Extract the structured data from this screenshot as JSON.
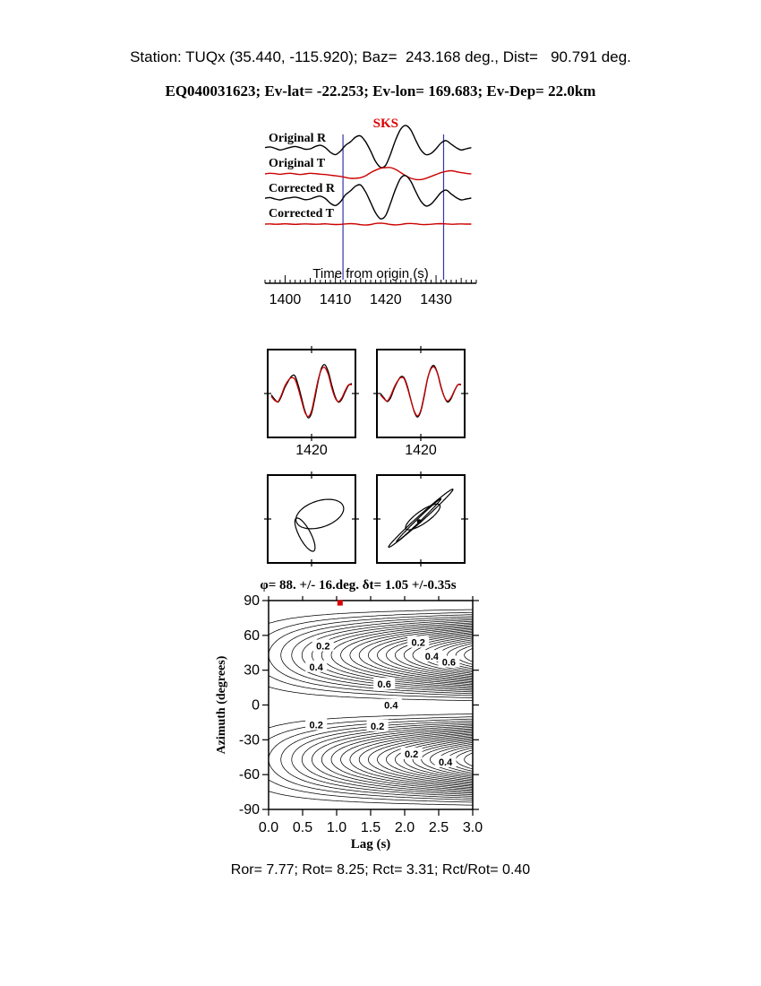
{
  "header": {
    "line1": "Station: TUQx (35.440, -115.920); Baz=  243.168 deg., Dist=   90.791 deg.",
    "line2": "EQ040031623; Ev-lat= -22.253; Ev-lon= 169.683; Ev-Dep= 22.0km"
  },
  "colors": {
    "trace_red": "#cc0000",
    "marker_blue": "#3333aa",
    "accent_red": "#dd0000"
  },
  "chart_data": [
    {
      "id": "waveform-panel",
      "type": "line",
      "phase_label": "SKS",
      "xlabel": "Time from origin (s)",
      "x_range": [
        1396,
        1438
      ],
      "x_ticks": [
        1400,
        1410,
        1420,
        1430
      ],
      "minor_tick_step": 1,
      "window_markers": [
        1411.5,
        1431.5
      ],
      "series": [
        {
          "name": "Original R",
          "color": "black",
          "values": [
            0.05,
            0.08,
            0.02,
            -0.05,
            0.0,
            0.06,
            0.1,
            0.05,
            -0.02,
            0.0,
            0.1,
            0.15,
            0.05,
            -0.15,
            -0.25,
            -0.1,
            0.15,
            0.3,
            0.5,
            0.55,
            0.3,
            -0.1,
            -0.55,
            -0.8,
            -0.7,
            -0.2,
            0.4,
            0.85,
            1.0,
            0.8,
            0.35,
            -0.05,
            -0.25,
            -0.2,
            0.0,
            0.25,
            0.35,
            0.2,
            0.05,
            -0.05,
            0.0,
            0.05
          ]
        },
        {
          "name": "Original T",
          "color": "red",
          "values": [
            0.0,
            0.05,
            0.02,
            -0.03,
            0.02,
            0.05,
            0.0,
            -0.05,
            0.0,
            0.05,
            0.02,
            -0.02,
            -0.05,
            -0.1,
            -0.15,
            -0.2,
            -0.28,
            -0.35,
            -0.35,
            -0.3,
            -0.15,
            0.1,
            0.3,
            0.45,
            0.5,
            0.5,
            0.35,
            0.1,
            -0.15,
            -0.35,
            -0.45,
            -0.45,
            -0.35,
            -0.2,
            -0.05,
            0.1,
            0.2,
            0.25,
            0.18,
            0.1,
            0.04,
            0.0
          ]
        },
        {
          "name": "Corrected R",
          "color": "black",
          "values": [
            0.03,
            0.06,
            0.0,
            -0.04,
            0.02,
            0.05,
            0.08,
            0.03,
            -0.03,
            0.0,
            0.08,
            0.12,
            0.02,
            -0.18,
            -0.28,
            -0.12,
            0.18,
            0.35,
            0.55,
            0.6,
            0.3,
            -0.15,
            -0.6,
            -0.85,
            -0.7,
            -0.15,
            0.45,
            0.9,
            1.0,
            0.75,
            0.3,
            -0.1,
            -0.3,
            -0.22,
            0.02,
            0.28,
            0.38,
            0.22,
            0.06,
            -0.04,
            0.0,
            0.04
          ]
        },
        {
          "name": "Corrected T",
          "color": "red",
          "values": [
            0.0,
            0.02,
            -0.02,
            0.0,
            0.03,
            0.0,
            -0.03,
            0.0,
            0.02,
            0.0,
            -0.02,
            0.0,
            0.03,
            -0.02,
            -0.05,
            -0.03,
            0.02,
            0.05,
            0.02,
            -0.08,
            -0.12,
            -0.05,
            0.08,
            0.12,
            0.05,
            -0.06,
            -0.1,
            -0.04,
            0.05,
            0.08,
            0.03,
            -0.04,
            -0.06,
            -0.02,
            0.03,
            0.05,
            0.02,
            -0.02,
            0.0,
            0.02,
            0.0,
            0.0
          ]
        }
      ]
    },
    {
      "id": "zoom-windows",
      "type": "line",
      "boxes": [
        {
          "x_tick_label": "1420",
          "series": [
            {
              "color": "black",
              "values": [
                -0.05,
                -0.2,
                -0.3,
                -0.1,
                0.2,
                0.42,
                0.6,
                0.62,
                0.3,
                -0.15,
                -0.6,
                -0.85,
                -0.68,
                -0.15,
                0.45,
                0.9,
                1.0,
                0.75,
                0.3,
                -0.1,
                -0.3,
                -0.2,
                0.05,
                0.28,
                0.35
              ]
            },
            {
              "color": "red",
              "values": [
                -0.1,
                -0.24,
                -0.28,
                -0.05,
                0.25,
                0.45,
                0.55,
                0.5,
                0.18,
                -0.25,
                -0.65,
                -0.8,
                -0.6,
                -0.05,
                0.5,
                0.85,
                0.9,
                0.65,
                0.2,
                -0.15,
                -0.28,
                -0.15,
                0.1,
                0.3,
                0.3
              ]
            }
          ]
        },
        {
          "x_tick_label": "1420",
          "series": [
            {
              "color": "black",
              "values": [
                0.0,
                -0.15,
                -0.28,
                -0.15,
                0.15,
                0.4,
                0.58,
                0.55,
                0.25,
                -0.2,
                -0.62,
                -0.82,
                -0.62,
                -0.1,
                0.5,
                0.88,
                0.97,
                0.7,
                0.25,
                -0.12,
                -0.3,
                -0.18,
                0.08,
                0.3,
                0.32
              ]
            },
            {
              "color": "red",
              "values": [
                -0.05,
                -0.18,
                -0.26,
                -0.08,
                0.2,
                0.42,
                0.55,
                0.52,
                0.2,
                -0.22,
                -0.6,
                -0.78,
                -0.58,
                -0.05,
                0.52,
                0.85,
                0.92,
                0.68,
                0.22,
                -0.12,
                -0.26,
                -0.14,
                0.1,
                0.3,
                0.3
              ]
            }
          ]
        }
      ]
    },
    {
      "id": "particle-motion",
      "type": "line",
      "boxes": [
        {
          "name": "uncorrected",
          "lobes": [
            {
              "cx": 0.2,
              "cy": 0.12,
              "rx": 0.6,
              "ry": 0.32,
              "rot": 18
            },
            {
              "cx": -0.16,
              "cy": -0.38,
              "rx": 0.14,
              "ry": 0.45,
              "rot": 28
            }
          ],
          "dot": null
        },
        {
          "name": "corrected",
          "lobes": [
            {
              "cx": 0.0,
              "cy": 0.02,
              "rx": 1.05,
              "ry": 0.07,
              "rot": 42
            },
            {
              "cx": 0.05,
              "cy": 0.05,
              "rx": 0.5,
              "ry": 0.15,
              "rot": 35
            },
            {
              "cx": -0.05,
              "cy": -0.03,
              "rx": 0.75,
              "ry": 0.04,
              "rot": 44
            }
          ],
          "dot": {
            "x": -0.04,
            "y": -0.06
          }
        }
      ]
    },
    {
      "id": "misfit-contour",
      "type": "heatmap",
      "title": "φ= 88. +/- 16.deg. δt= 1.05 +/-0.35s",
      "xlabel": "Lag (s)",
      "ylabel": "Azimuth (degrees)",
      "xlim": [
        0,
        3
      ],
      "ylim": [
        -90,
        90
      ],
      "x_ticks": [
        "0.0",
        "0.5",
        "1.0",
        "1.5",
        "2.0",
        "2.5",
        "3.0"
      ],
      "y_ticks": [
        -90,
        -60,
        -30,
        0,
        30,
        60,
        90
      ],
      "levels": [
        0.04,
        0.08,
        0.12,
        0.16,
        0.2,
        0.24,
        0.28,
        0.32,
        0.36,
        0.4,
        0.44,
        0.48,
        0.52,
        0.56,
        0.6,
        0.64,
        0.68,
        0.72,
        0.76,
        0.8,
        0.84,
        0.88,
        0.92,
        0.96
      ],
      "surface": {
        "phi_deg": 88,
        "base": 0.12,
        "power": 1.1
      },
      "best": {
        "lag": 1.05,
        "azimuth": 88
      },
      "contour_labels": [
        {
          "v": "0.2",
          "lag": 0.8,
          "az": 51
        },
        {
          "v": "0.2",
          "lag": 2.2,
          "az": 54
        },
        {
          "v": "0.4",
          "lag": 2.4,
          "az": 42
        },
        {
          "v": "0.6",
          "lag": 2.65,
          "az": 37
        },
        {
          "v": "0.4",
          "lag": 0.7,
          "az": 33
        },
        {
          "v": "0.6",
          "lag": 1.7,
          "az": 18
        },
        {
          "v": "0.4",
          "lag": 1.8,
          "az": 0
        },
        {
          "v": "0.2",
          "lag": 0.7,
          "az": -17
        },
        {
          "v": "0.2",
          "lag": 1.6,
          "az": -18
        },
        {
          "v": "0.2",
          "lag": 2.1,
          "az": -42
        },
        {
          "v": "0.4",
          "lag": 2.6,
          "az": -49
        }
      ]
    }
  ],
  "footer": {
    "stats": "Ror= 7.77; Rot= 8.25; Rct= 3.31; Rct/Rot= 0.40"
  }
}
